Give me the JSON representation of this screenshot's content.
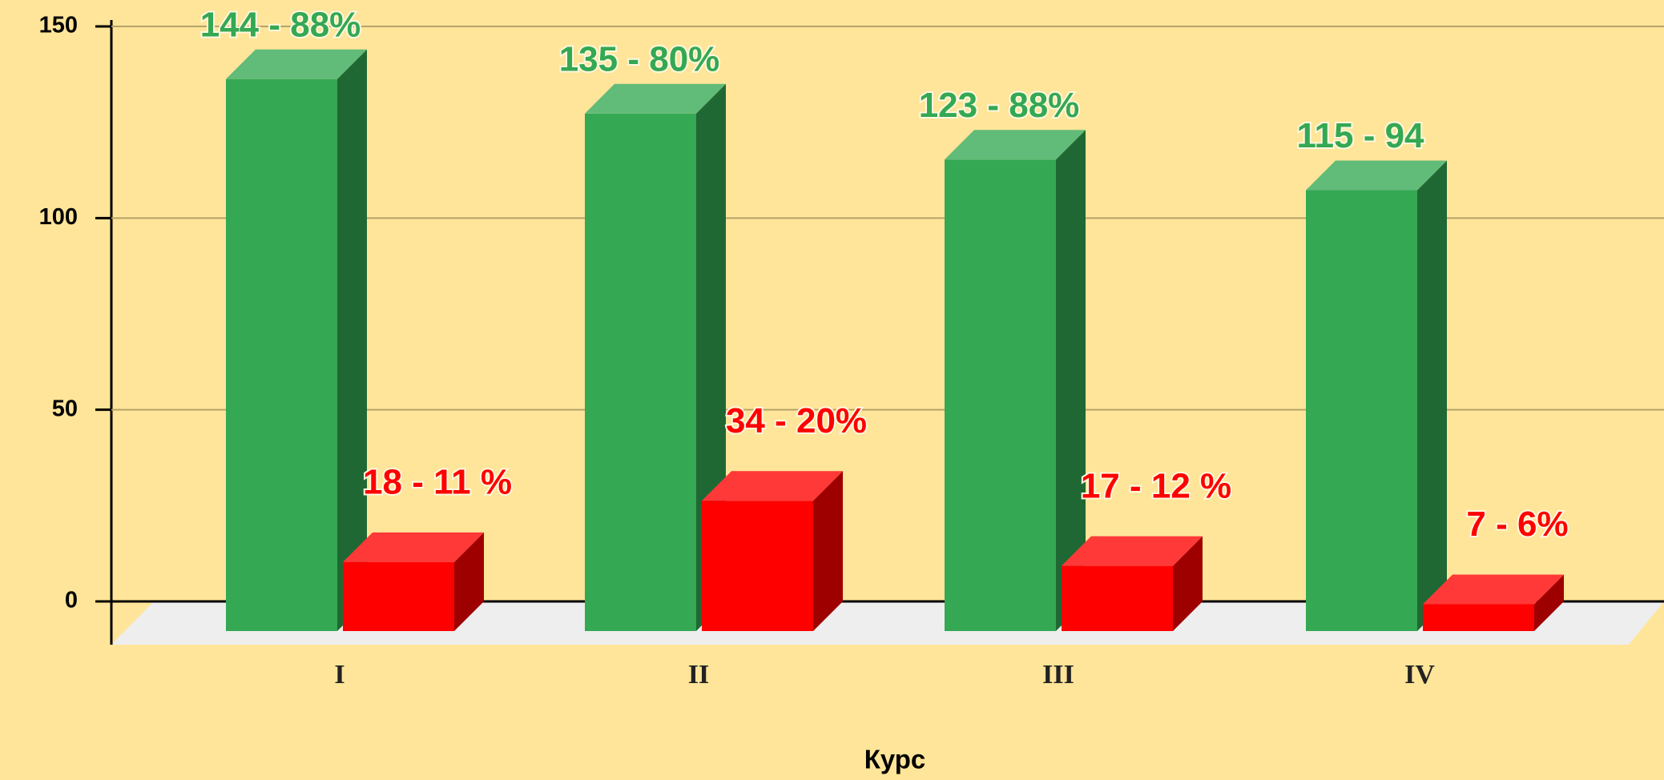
{
  "chart_data": {
    "type": "bar3d",
    "x_label": "Курс",
    "categories": [
      "I",
      "II",
      "III",
      "IV"
    ],
    "series": [
      {
        "color": "#34a853",
        "values": [
          144,
          135,
          123,
          115
        ],
        "value_labels": [
          "144 - 88%",
          "135 - 80%",
          "123 - 88%",
          "115 - 94"
        ]
      },
      {
        "color": "#ff0000",
        "values": [
          18,
          34,
          17,
          7
        ],
        "value_labels": [
          "18 - 11 %",
          "34 - 20%",
          "17 - 12 %",
          "7 - 6%"
        ]
      }
    ],
    "ylim": [
      0,
      150
    ],
    "yticks": [
      0,
      50,
      100,
      150
    ],
    "grid": true
  }
}
